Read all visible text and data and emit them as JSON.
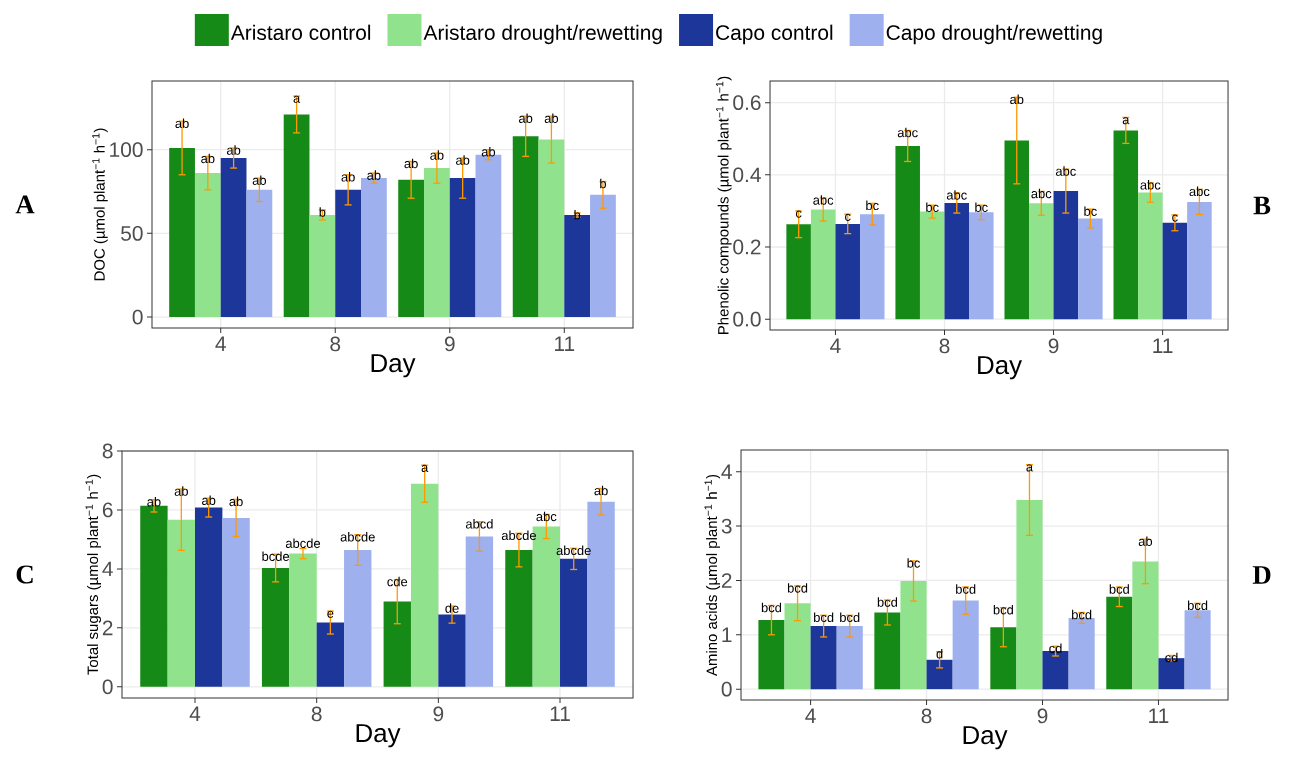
{
  "chart_data": [
    {
      "type": "bar",
      "xlabel": "Day",
      "ylabel": "DOC (µmol plant$^{−1}$ h$^{−1}$)",
      "categories": [
        "4",
        "8",
        "9",
        "11"
      ],
      "ylim": [
        -6.5,
        141
      ],
      "yticks": [
        0,
        50,
        100
      ],
      "grid": true,
      "legend": "top",
      "annotations": [
        "A"
      ],
      "series": [
        {
          "name": "Aristaro control",
          "color": "#168a16",
          "values": [
            101,
            121,
            82,
            108
          ],
          "errors": [
            16,
            11,
            11,
            12
          ],
          "value_labels": [
            "ab",
            "a",
            "ab",
            "ab"
          ]
        },
        {
          "name": "Aristaro drought/rewetting",
          "color": "#90e38c",
          "values": [
            86,
            61,
            89,
            106
          ],
          "errors": [
            10,
            3,
            9,
            14
          ],
          "value_labels": [
            "ab",
            "b",
            "ab",
            "ab"
          ]
        },
        {
          "name": "Capo control",
          "color": "#1c3799",
          "values": [
            95,
            76,
            83,
            61
          ],
          "errors": [
            6,
            9,
            12,
            1.3
          ],
          "value_labels": [
            "ab",
            "ab",
            "ab",
            "b"
          ]
        },
        {
          "name": "Capo drought/rewetting",
          "color": "#9eb0ee",
          "values": [
            76,
            83,
            97,
            73
          ],
          "errors": [
            7,
            3,
            3,
            8
          ],
          "value_labels": [
            "ab",
            "ab",
            "ab",
            "b"
          ]
        }
      ]
    },
    {
      "type": "bar",
      "xlabel": "Day",
      "ylabel": "Phenolic compounds (µmol plant$^{−1}$ h$^{−1}$)",
      "categories": [
        "4",
        "8",
        "9",
        "11"
      ],
      "ylim": [
        -0.03,
        0.66
      ],
      "yticks": [
        {
          "value": 0,
          "label": "0.0"
        },
        0.2,
        0.4,
        0.6
      ],
      "grid": true,
      "annotations": [
        "B"
      ],
      "series": [
        {
          "color": "#168a16",
          "values": [
            0.263,
            0.48,
            0.495,
            0.523
          ],
          "errors": [
            0.037,
            0.043,
            0.12,
            0.036
          ],
          "value_labels": [
            "c",
            "abc",
            "ab",
            "a"
          ]
        },
        {
          "color": "#90e38c",
          "values": [
            0.304,
            0.298,
            0.321,
            0.351
          ],
          "errors": [
            0.032,
            0.018,
            0.033,
            0.027
          ],
          "value_labels": [
            "abc",
            "bc",
            "abc",
            "abc"
          ]
        },
        {
          "color": "#1c3799",
          "values": [
            0.264,
            0.322,
            0.355,
            0.267
          ],
          "errors": [
            0.027,
            0.028,
            0.061,
            0.022
          ],
          "value_labels": [
            "c",
            "abc",
            "abc",
            "c"
          ]
        },
        {
          "color": "#9eb0ee",
          "values": [
            0.291,
            0.296,
            0.279,
            0.325
          ],
          "errors": [
            0.03,
            0.02,
            0.026,
            0.035
          ],
          "value_labels": [
            "bc",
            "bc",
            "bc",
            "abc"
          ]
        }
      ]
    },
    {
      "type": "bar",
      "xlabel": "Day",
      "ylabel": "Total sugars (µmol plant$^{−1}$ h$^{−1}$)",
      "categories": [
        "4",
        "8",
        "9",
        "11"
      ],
      "ylim": [
        -0.38,
        8.0
      ],
      "yticks": [
        0,
        2,
        4,
        6,
        8
      ],
      "grid": true,
      "annotations": [
        "C"
      ],
      "series": [
        {
          "color": "#168a16",
          "values": [
            6.14,
            4.03,
            2.89,
            4.64
          ],
          "errors": [
            0.21,
            0.47,
            0.75,
            0.57
          ],
          "value_labels": [
            "ab",
            "bcde",
            "cde",
            "abcde"
          ]
        },
        {
          "color": "#90e38c",
          "values": [
            5.67,
            4.52,
            6.89,
            5.44
          ],
          "errors": [
            1.04,
            0.17,
            0.63,
            0.41
          ],
          "value_labels": [
            "ab",
            "abcde",
            "a",
            "abc"
          ]
        },
        {
          "color": "#1c3799",
          "values": [
            6.08,
            2.18,
            2.45,
            4.34
          ],
          "errors": [
            0.32,
            0.39,
            0.29,
            0.36
          ],
          "value_labels": [
            "ab",
            "e",
            "de",
            "abcde"
          ]
        },
        {
          "color": "#9eb0ee",
          "values": [
            5.73,
            4.64,
            5.1,
            6.28
          ],
          "errors": [
            0.63,
            0.52,
            0.5,
            0.45
          ],
          "value_labels": [
            "ab",
            "abcde",
            "abcd",
            "ab"
          ]
        }
      ]
    },
    {
      "type": "bar",
      "xlabel": "Day",
      "ylabel": "Amino acids (µmol plant$^{−1}$ h$^{−1}$)",
      "categories": [
        "4",
        "8",
        "9",
        "11"
      ],
      "ylim": [
        -0.2,
        4.4
      ],
      "yticks": [
        0,
        1,
        2,
        3,
        4
      ],
      "grid": true,
      "annotations": [
        "D"
      ],
      "series": [
        {
          "color": "#168a16",
          "values": [
            1.27,
            1.41,
            1.14,
            1.7
          ],
          "errors": [
            0.27,
            0.23,
            0.36,
            0.18
          ],
          "value_labels": [
            "bcd",
            "bcd",
            "bcd",
            "bcd"
          ]
        },
        {
          "color": "#90e38c",
          "values": [
            1.58,
            1.99,
            3.48,
            2.35
          ],
          "errors": [
            0.32,
            0.37,
            0.65,
            0.41
          ],
          "value_labels": [
            "bcd",
            "bc",
            "a",
            "ab"
          ]
        },
        {
          "color": "#1c3799",
          "values": [
            1.16,
            0.54,
            0.7,
            0.57
          ],
          "errors": [
            0.2,
            0.15,
            0.09,
            0.05
          ],
          "value_labels": [
            "bcd",
            "d",
            "cd",
            "cd"
          ]
        },
        {
          "color": "#9eb0ee",
          "values": [
            1.16,
            1.63,
            1.31,
            1.45
          ],
          "errors": [
            0.2,
            0.25,
            0.1,
            0.13
          ],
          "value_labels": [
            "bcd",
            "bcd",
            "bcd",
            "bcd"
          ]
        }
      ]
    }
  ]
}
